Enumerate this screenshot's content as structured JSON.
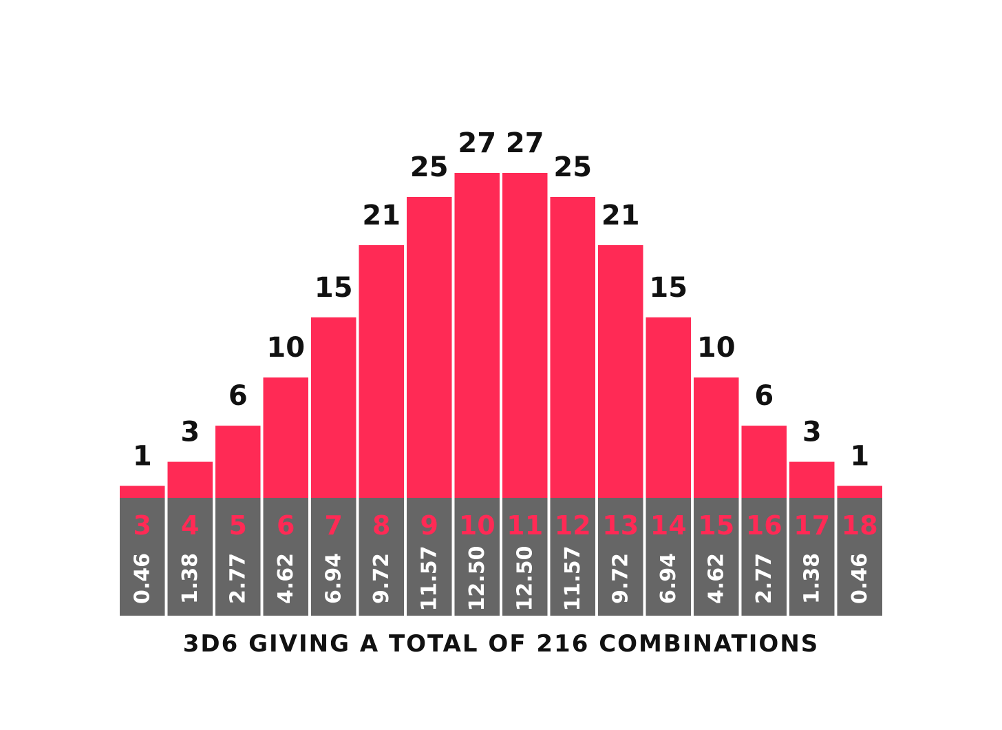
{
  "chart_data": {
    "type": "bar",
    "title": "",
    "caption": "3D6 GIVING A TOTAL OF 216 COMBINATIONS",
    "categories": [
      "3",
      "4",
      "5",
      "6",
      "7",
      "8",
      "9",
      "10",
      "11",
      "12",
      "13",
      "14",
      "15",
      "16",
      "17",
      "18"
    ],
    "values": [
      1,
      3,
      6,
      10,
      15,
      21,
      25,
      27,
      27,
      25,
      21,
      15,
      10,
      6,
      3,
      1
    ],
    "value_labels": [
      "1",
      "3",
      "6",
      "10",
      "15",
      "21",
      "25",
      "27",
      "27",
      "25",
      "21",
      "15",
      "10",
      "6",
      "3",
      "1"
    ],
    "percentages": [
      "0.46",
      "1.38",
      "2.77",
      "4.62",
      "6.94",
      "9.72",
      "11.57",
      "12.50",
      "12.50",
      "11.57",
      "9.72",
      "6.94",
      "4.62",
      "2.77",
      "1.38",
      "0.46"
    ],
    "ylim": [
      0,
      27
    ],
    "grid": false,
    "legend": "none",
    "colors": {
      "bar": "#ff2a55",
      "base": "#666666",
      "sum_text": "#ff2a55",
      "pct_text": "#ffffff",
      "label_text": "#111111"
    }
  }
}
